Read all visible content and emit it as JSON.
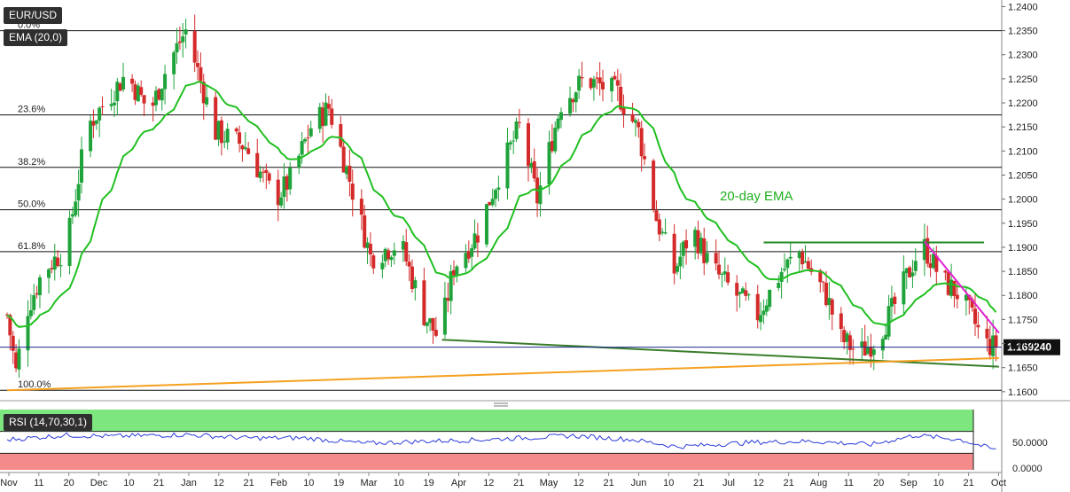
{
  "chart_data": {
    "type": "candlestick",
    "symbol_label": "EUR/USD",
    "indicator_label": "EMA (20,0)",
    "ema_annotation": "20-day EMA",
    "last_price_label": "1.169240",
    "last_price": 1.16924,
    "ylim": [
      1.1585,
      1.241
    ],
    "y_ticks": [
      "1.1600",
      "1.1650",
      "1.1700",
      "1.1750",
      "1.1800",
      "1.1850",
      "1.1900",
      "1.1950",
      "1.2000",
      "1.2050",
      "1.2100",
      "1.2150",
      "1.2200",
      "1.2250",
      "1.2300",
      "1.2350",
      "1.2400"
    ],
    "x_ticks": [
      "Nov",
      "11",
      "20",
      "Dec",
      "10",
      "21",
      "Jan",
      "12",
      "21",
      "Feb",
      "10",
      "19",
      "Mar",
      "10",
      "19",
      "Apr",
      "12",
      "21",
      "May",
      "12",
      "21",
      "Jun",
      "10",
      "21",
      "Jul",
      "12",
      "21",
      "Aug",
      "11",
      "20",
      "Sep",
      "10",
      "21",
      "Oct"
    ],
    "fibonacci": [
      {
        "label": "0.0%",
        "value": 1.235
      },
      {
        "label": "23.6%",
        "value": 1.2175
      },
      {
        "label": "38.2%",
        "value": 1.2066
      },
      {
        "label": "50.0%",
        "value": 1.1978
      },
      {
        "label": "61.8%",
        "value": 1.1891
      },
      {
        "label": "100.0%",
        "value": 1.1603
      }
    ],
    "anchors": [
      {
        "d": 0,
        "v": 1.176
      },
      {
        "d": 3,
        "v": 1.164
      },
      {
        "d": 6,
        "v": 1.176
      },
      {
        "d": 12,
        "v": 1.185
      },
      {
        "d": 20,
        "v": 1.19
      },
      {
        "d": 25,
        "v": 1.208
      },
      {
        "d": 28,
        "v": 1.216
      },
      {
        "d": 40,
        "v": 1.226
      },
      {
        "d": 48,
        "v": 1.218
      },
      {
        "d": 54,
        "v": 1.228
      },
      {
        "d": 60,
        "v": 1.235
      },
      {
        "d": 70,
        "v": 1.214
      },
      {
        "d": 80,
        "v": 1.211
      },
      {
        "d": 90,
        "v": 1.2
      },
      {
        "d": 95,
        "v": 1.204
      },
      {
        "d": 102,
        "v": 1.215
      },
      {
        "d": 108,
        "v": 1.219
      },
      {
        "d": 115,
        "v": 1.204
      },
      {
        "d": 122,
        "v": 1.188
      },
      {
        "d": 132,
        "v": 1.191
      },
      {
        "d": 140,
        "v": 1.176
      },
      {
        "d": 145,
        "v": 1.171
      },
      {
        "d": 150,
        "v": 1.186
      },
      {
        "d": 158,
        "v": 1.193
      },
      {
        "d": 165,
        "v": 1.205
      },
      {
        "d": 172,
        "v": 1.215
      },
      {
        "d": 178,
        "v": 1.2
      },
      {
        "d": 186,
        "v": 1.22
      },
      {
        "d": 194,
        "v": 1.225
      },
      {
        "d": 205,
        "v": 1.222
      },
      {
        "d": 212,
        "v": 1.214
      },
      {
        "d": 218,
        "v": 1.196
      },
      {
        "d": 224,
        "v": 1.185
      },
      {
        "d": 230,
        "v": 1.194
      },
      {
        "d": 236,
        "v": 1.186
      },
      {
        "d": 245,
        "v": 1.18
      },
      {
        "d": 252,
        "v": 1.176
      },
      {
        "d": 260,
        "v": 1.185
      },
      {
        "d": 266,
        "v": 1.189
      },
      {
        "d": 275,
        "v": 1.18
      },
      {
        "d": 280,
        "v": 1.171
      },
      {
        "d": 286,
        "v": 1.168
      },
      {
        "d": 292,
        "v": 1.171
      },
      {
        "d": 298,
        "v": 1.178
      },
      {
        "d": 305,
        "v": 1.188
      },
      {
        "d": 308,
        "v": 1.19
      },
      {
        "d": 314,
        "v": 1.183
      },
      {
        "d": 320,
        "v": 1.18
      },
      {
        "d": 325,
        "v": 1.174
      },
      {
        "d": 328,
        "v": 1.17
      },
      {
        "d": 332,
        "v": 1.16924
      }
    ],
    "trendlines": [
      {
        "name": "horizontal-resistance",
        "color": "#228B22",
        "from": {
          "d": 254,
          "v": 1.191
        },
        "to": {
          "d": 328,
          "v": 1.191
        }
      },
      {
        "name": "descending-resistance",
        "color": "#e020d0",
        "from": {
          "d": 308,
          "v": 1.1912
        },
        "to": {
          "d": 333,
          "v": 1.1722
        }
      },
      {
        "name": "descending-support",
        "color": "#3a7d2a",
        "from": {
          "d": 146,
          "v": 1.1708
        },
        "to": {
          "d": 333,
          "v": 1.1652
        }
      },
      {
        "name": "ascending-support",
        "color": "#f5a020",
        "from": {
          "d": 0,
          "v": 1.1603
        },
        "to": {
          "d": 333,
          "v": 1.167
        }
      }
    ],
    "rsi": {
      "label": "RSI (14,70,30,1)",
      "ticks": [
        "50.0000",
        "0.0000"
      ],
      "overbought": 70,
      "oversold": 30,
      "anchors": [
        {
          "d": 0,
          "v": 55
        },
        {
          "d": 20,
          "v": 63
        },
        {
          "d": 35,
          "v": 61
        },
        {
          "d": 60,
          "v": 64
        },
        {
          "d": 80,
          "v": 58
        },
        {
          "d": 100,
          "v": 58
        },
        {
          "d": 120,
          "v": 48
        },
        {
          "d": 140,
          "v": 52
        },
        {
          "d": 160,
          "v": 55
        },
        {
          "d": 190,
          "v": 62
        },
        {
          "d": 210,
          "v": 55
        },
        {
          "d": 225,
          "v": 42
        },
        {
          "d": 250,
          "v": 50
        },
        {
          "d": 270,
          "v": 52
        },
        {
          "d": 290,
          "v": 46
        },
        {
          "d": 305,
          "v": 63
        },
        {
          "d": 320,
          "v": 55
        },
        {
          "d": 332,
          "v": 36
        }
      ]
    },
    "colors": {
      "up": "#1fa33a",
      "down": "#d42a2a",
      "ema": "#20c020",
      "rsi_line": "#2a3bd8",
      "rsi_upper_zone": "#7ee67e",
      "rsi_lower_zone": "#f58a8a",
      "last_price_badge": "#111111"
    }
  }
}
